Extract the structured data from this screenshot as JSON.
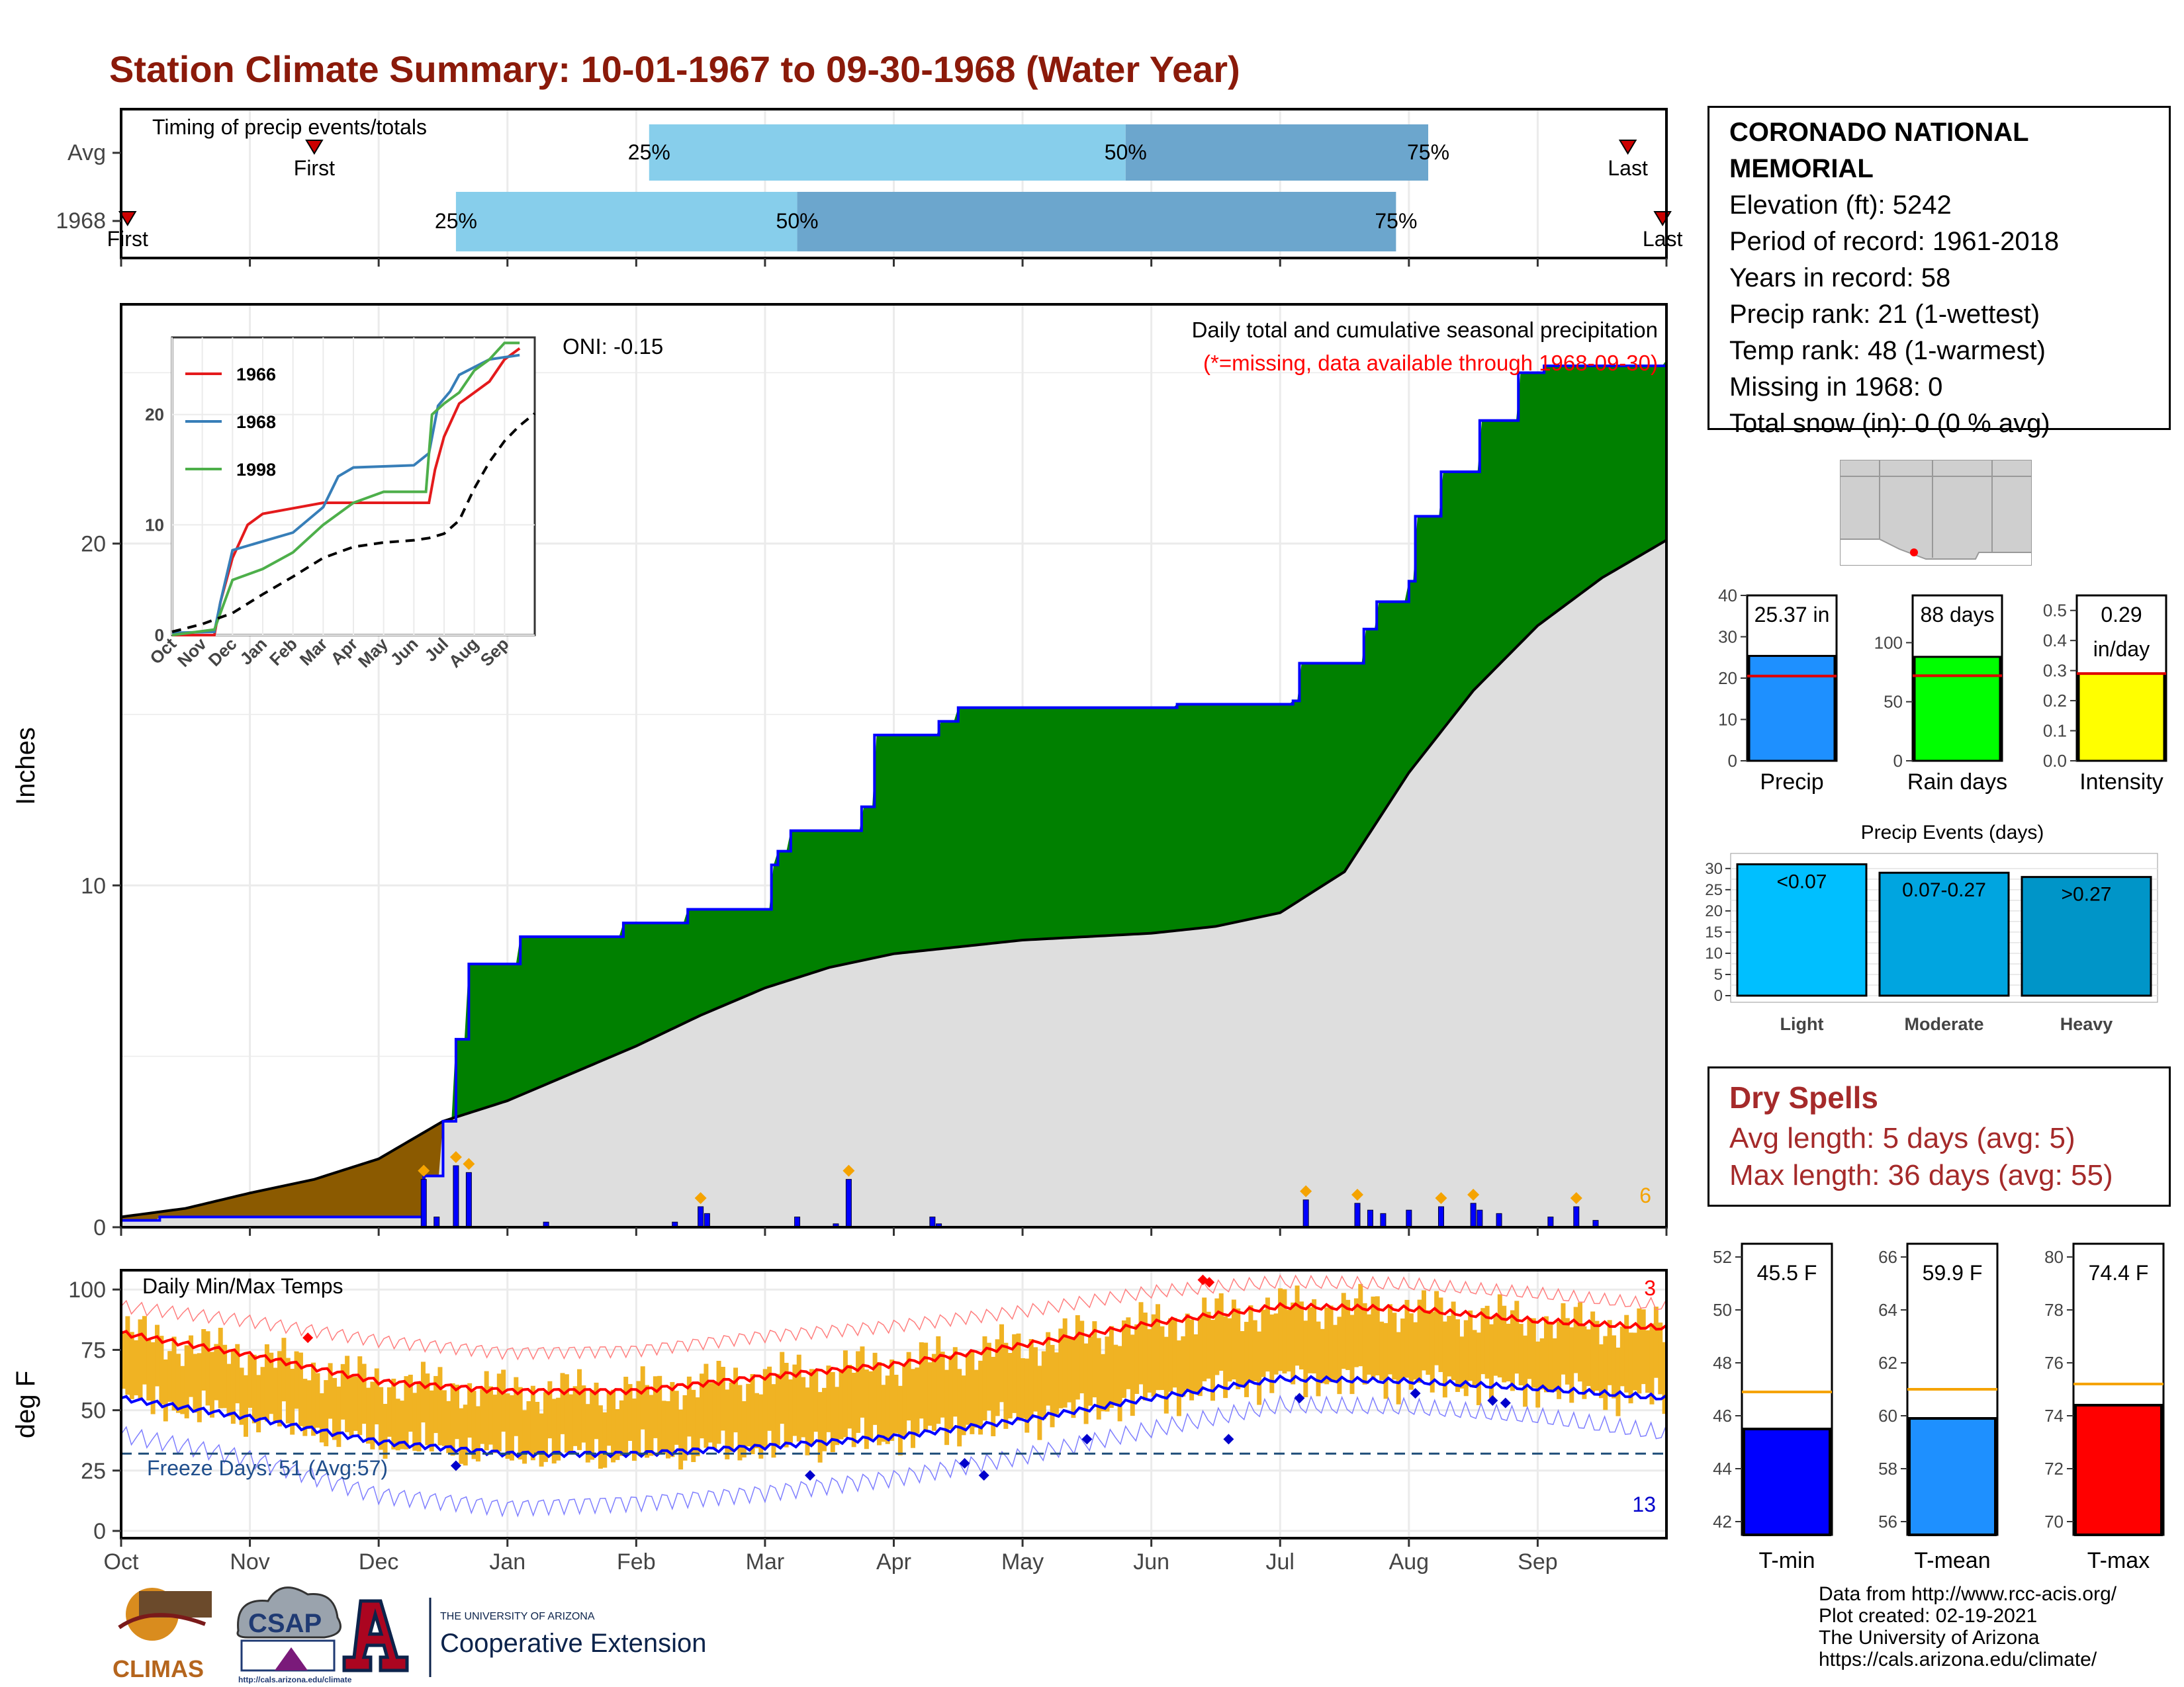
{
  "title": "Station Climate Summary: 10-01-1967 to 09-30-1968 (Water Year)",
  "timing_panel": {
    "label": "Timing of precip events/totals",
    "rows": [
      {
        "name": "Avg",
        "first_label": "First",
        "last_label": "Last",
        "p25": "25%",
        "p50": "50%",
        "p75": "75%",
        "first_month": 1.5,
        "p25_month": 4.1,
        "p50_month": 7.8,
        "p75_month": 10.15,
        "last_month": 11.7
      },
      {
        "name": "1968",
        "first_label": "First",
        "last_label": "Last",
        "p25": "25%",
        "p50": "50%",
        "p75": "75%",
        "first_month": 0.05,
        "p25_month": 2.6,
        "p50_month": 5.25,
        "p75_month": 9.9,
        "last_month": 11.97
      }
    ]
  },
  "precip_panel": {
    "title": "Daily total and cumulative seasonal precipitation",
    "subtitle": "(*=missing, data available through 1968-09-30)",
    "oni": "ONI: -0.15",
    "ylabel": "Inches",
    "yticks": [
      "0",
      "10",
      "20"
    ],
    "corner_count": "6"
  },
  "inset": {
    "legend": [
      "1966",
      "1968",
      "1998"
    ],
    "months": [
      "Oct",
      "Nov",
      "Dec",
      "Jan",
      "Feb",
      "Mar",
      "Apr",
      "May",
      "Jun",
      "Jul",
      "Aug",
      "Sep"
    ],
    "yticks": [
      "0",
      "10",
      "20"
    ]
  },
  "temp_panel": {
    "label": "Daily Min/Max Temps",
    "ylabel": "deg F",
    "yticks": [
      "0",
      "25",
      "50",
      "75",
      "100"
    ],
    "freeze": "Freeze Days: 51 (Avg:57)",
    "hot_count": "3",
    "cold_count": "13"
  },
  "months": [
    "Oct",
    "Nov",
    "Dec",
    "Jan",
    "Feb",
    "Mar",
    "Apr",
    "May",
    "Jun",
    "Jul",
    "Aug",
    "Sep"
  ],
  "station": {
    "name": "CORONADO NATIONAL MEMORIAL",
    "elevation": "Elevation (ft): 5242",
    "period": "Period of record: 1961-2018",
    "years": "Years in record: 58",
    "precip_rank": "Precip rank: 21 (1-wettest)",
    "temp_rank": "Temp rank: 48 (1-warmest)",
    "missing": "Missing in 1968: 0",
    "snow": "Total snow (in): 0 (0 % avg)"
  },
  "summary_bars": [
    {
      "label": "Precip",
      "value_label": "25.37 in",
      "value": 25.37,
      "avg": 20.5,
      "ymax": 40,
      "yticks": [
        "0",
        "10",
        "20",
        "30",
        "40"
      ],
      "color": "#1e90ff"
    },
    {
      "label": "Rain days",
      "value_label": "88 days",
      "value": 88,
      "avg": 72,
      "ymax": 140,
      "yticks": [
        "0",
        "50",
        "100"
      ],
      "color": "#00ff00"
    },
    {
      "label": "Intensity",
      "value_label": "0.29",
      "value_label2": "in/day",
      "value": 0.29,
      "avg": 0.29,
      "ymax": 0.55,
      "yticks": [
        "0.0",
        "0.1",
        "0.2",
        "0.3",
        "0.4",
        "0.5"
      ],
      "color": "#ffff00"
    }
  ],
  "precip_events": {
    "title": "Precip Events (days)",
    "categories": [
      "Light",
      "Moderate",
      "Heavy"
    ],
    "bar_labels": [
      "<0.07",
      "0.07-0.27",
      ">0.27"
    ],
    "values": [
      31,
      29,
      28
    ],
    "yticks": [
      "0",
      "5",
      "10",
      "15",
      "20",
      "25",
      "30"
    ],
    "colors": [
      "#00bfff",
      "#00a5e0",
      "#0095c8"
    ]
  },
  "dry_spells": {
    "title": "Dry Spells",
    "avg": "Avg length: 5 days (avg: 5)",
    "max": "Max length: 36 days (avg: 55)"
  },
  "temp_bars": [
    {
      "label": "T-min",
      "value_label": "45.5 F",
      "value": 45.5,
      "avg": 46.9,
      "ymin": 41.5,
      "ymax": 52.5,
      "yticks": [
        "42",
        "44",
        "46",
        "48",
        "50",
        "52"
      ],
      "color": "#0000ff"
    },
    {
      "label": "T-mean",
      "value_label": "59.9 F",
      "value": 59.9,
      "avg": 61.0,
      "ymin": 55.5,
      "ymax": 66.5,
      "yticks": [
        "56",
        "58",
        "60",
        "62",
        "64",
        "66"
      ],
      "color": "#1e90ff"
    },
    {
      "label": "T-max",
      "value_label": "74.4 F",
      "value": 74.4,
      "avg": 75.2,
      "ymin": 69.5,
      "ymax": 80.5,
      "yticks": [
        "70",
        "72",
        "74",
        "76",
        "78",
        "80"
      ],
      "color": "#ff0000"
    }
  ],
  "credits": {
    "line1": "Data from http://www.rcc-acis.org/",
    "line2": "Plot created: 02-19-2021",
    "line3": "The University of Arizona",
    "line4": "https://cals.arizona.edu/climate/"
  },
  "logos": {
    "climas": "CLIMAS",
    "csap": "CSAP",
    "csap_url": "http://cals.arizona.edu/climate",
    "ua_small": "THE UNIVERSITY OF ARIZONA",
    "ua_big": "Cooperative Extension"
  },
  "chart_data": [
    {
      "type": "area",
      "title": "Daily total and cumulative seasonal precipitation",
      "ylabel": "Inches",
      "ylim": [
        0,
        27
      ],
      "x_unit": "month index from Oct 1 (0-12)",
      "cumulative_1968": [
        [
          0,
          0.2
        ],
        [
          0.3,
          0.3
        ],
        [
          2.0,
          0.3
        ],
        [
          2.35,
          1.5
        ],
        [
          2.5,
          3.1
        ],
        [
          2.6,
          5.5
        ],
        [
          2.7,
          7.7
        ],
        [
          3.0,
          7.7
        ],
        [
          3.1,
          8.5
        ],
        [
          3.8,
          8.5
        ],
        [
          3.9,
          8.9
        ],
        [
          4.35,
          8.9
        ],
        [
          4.4,
          9.3
        ],
        [
          5.0,
          9.3
        ],
        [
          5.05,
          10.6
        ],
        [
          5.1,
          11.0
        ],
        [
          5.2,
          11.6
        ],
        [
          5.65,
          11.6
        ],
        [
          5.75,
          12.3
        ],
        [
          5.85,
          14.4
        ],
        [
          6.25,
          14.4
        ],
        [
          6.35,
          14.8
        ],
        [
          6.5,
          15.2
        ],
        [
          8.2,
          15.3
        ],
        [
          9.1,
          15.4
        ],
        [
          9.15,
          16.5
        ],
        [
          9.6,
          16.5
        ],
        [
          9.65,
          17.5
        ],
        [
          9.75,
          18.3
        ],
        [
          10.0,
          18.9
        ],
        [
          10.05,
          20.8
        ],
        [
          10.25,
          22.1
        ],
        [
          10.5,
          22.1
        ],
        [
          10.55,
          23.6
        ],
        [
          10.8,
          23.6
        ],
        [
          10.85,
          25.0
        ],
        [
          11.05,
          25.2
        ],
        [
          12.0,
          25.37
        ]
      ],
      "cumulative_avg": [
        [
          0,
          0.3
        ],
        [
          0.5,
          0.55
        ],
        [
          1.0,
          1.0
        ],
        [
          1.5,
          1.4
        ],
        [
          2.0,
          2.0
        ],
        [
          2.5,
          3.1
        ],
        [
          3.0,
          3.7
        ],
        [
          3.5,
          4.5
        ],
        [
          4.0,
          5.3
        ],
        [
          4.5,
          6.2
        ],
        [
          5.0,
          7.0
        ],
        [
          5.5,
          7.6
        ],
        [
          6.0,
          8.0
        ],
        [
          6.5,
          8.2
        ],
        [
          7.0,
          8.4
        ],
        [
          7.5,
          8.5
        ],
        [
          8.0,
          8.6
        ],
        [
          8.5,
          8.8
        ],
        [
          9.0,
          9.2
        ],
        [
          9.5,
          10.4
        ],
        [
          10.0,
          13.3
        ],
        [
          10.5,
          15.7
        ],
        [
          11.0,
          17.6
        ],
        [
          11.5,
          19.0
        ],
        [
          12.0,
          20.1
        ]
      ],
      "daily_spikes": [
        [
          2.35,
          1.4
        ],
        [
          2.45,
          0.3
        ],
        [
          2.6,
          1.8
        ],
        [
          2.7,
          1.6
        ],
        [
          3.3,
          0.15
        ],
        [
          4.3,
          0.15
        ],
        [
          4.5,
          0.6
        ],
        [
          4.55,
          0.4
        ],
        [
          5.25,
          0.3
        ],
        [
          5.55,
          0.1
        ],
        [
          5.65,
          1.4
        ],
        [
          6.3,
          0.3
        ],
        [
          6.35,
          0.1
        ],
        [
          9.2,
          0.8
        ],
        [
          9.6,
          0.7
        ],
        [
          9.7,
          0.5
        ],
        [
          9.8,
          0.4
        ],
        [
          10.0,
          0.5
        ],
        [
          10.25,
          0.6
        ],
        [
          10.5,
          0.7
        ],
        [
          10.55,
          0.5
        ],
        [
          10.7,
          0.4
        ],
        [
          11.1,
          0.3
        ],
        [
          11.3,
          0.6
        ],
        [
          11.45,
          0.2
        ]
      ]
    },
    {
      "type": "line",
      "title": "",
      "x_unit": "month index",
      "ylim": [
        0,
        27
      ],
      "series": [
        {
          "name": "1966",
          "color": "#e41a1c",
          "values": [
            [
              0,
              0
            ],
            [
              1.4,
              0
            ],
            [
              1.6,
              3
            ],
            [
              2.0,
              7
            ],
            [
              2.5,
              10
            ],
            [
              3,
              11
            ],
            [
              4,
              11.5
            ],
            [
              5,
              12
            ],
            [
              6,
              12
            ],
            [
              7,
              12
            ],
            [
              8,
              12
            ],
            [
              8.5,
              12
            ],
            [
              8.7,
              15
            ],
            [
              9,
              18
            ],
            [
              9.5,
              21
            ],
            [
              10,
              22
            ],
            [
              10.5,
              23
            ],
            [
              11,
              25
            ],
            [
              11.5,
              26
            ]
          ]
        },
        {
          "name": "1968",
          "color": "#377eb8",
          "values": [
            [
              0,
              0.2
            ],
            [
              1.4,
              0.3
            ],
            [
              1.6,
              3
            ],
            [
              2,
              7.7
            ],
            [
              3,
              8.5
            ],
            [
              4,
              9.3
            ],
            [
              5,
              11.6
            ],
            [
              5.5,
              14.4
            ],
            [
              6,
              15.2
            ],
            [
              8,
              15.4
            ],
            [
              8.5,
              16.5
            ],
            [
              8.8,
              20.8
            ],
            [
              9.2,
              22.1
            ],
            [
              9.5,
              23.6
            ],
            [
              10.5,
              25
            ],
            [
              11.5,
              25.4
            ]
          ]
        },
        {
          "name": "1998",
          "color": "#4daf4a",
          "values": [
            [
              0,
              0
            ],
            [
              1.4,
              0.5
            ],
            [
              1.6,
              2
            ],
            [
              2,
              5
            ],
            [
              3,
              6
            ],
            [
              4,
              7.5
            ],
            [
              5,
              10
            ],
            [
              6,
              12
            ],
            [
              7,
              13
            ],
            [
              8,
              13
            ],
            [
              8.4,
              13
            ],
            [
              8.6,
              20
            ],
            [
              9,
              21
            ],
            [
              9.5,
              22
            ],
            [
              10,
              24
            ],
            [
              10.5,
              25
            ],
            [
              11,
              26.5
            ],
            [
              11.5,
              26.5
            ]
          ]
        },
        {
          "name": "",
          "color": "#000000",
          "dashed": true,
          "values": [
            [
              0,
              0.3
            ],
            [
              1,
              1.0
            ],
            [
              2,
              2.0
            ],
            [
              3,
              3.7
            ],
            [
              4,
              5.3
            ],
            [
              5,
              7.0
            ],
            [
              6,
              8.0
            ],
            [
              7,
              8.4
            ],
            [
              8,
              8.6
            ],
            [
              8.5,
              8.8
            ],
            [
              9,
              9.2
            ],
            [
              9.5,
              10.4
            ],
            [
              10,
              13.3
            ],
            [
              10.5,
              15.7
            ],
            [
              11,
              17.6
            ],
            [
              11.5,
              19.0
            ],
            [
              12,
              20.1
            ]
          ]
        }
      ]
    },
    {
      "type": "line",
      "title": "Daily Min/Max Temps",
      "ylabel": "deg F",
      "ylim": [
        -3,
        108
      ],
      "x_unit": "month index",
      "series": [
        {
          "name": "",
          "color": "#ff0000",
          "values": [
            [
              0,
              82
            ],
            [
              1,
              73
            ],
            [
              2,
              62
            ],
            [
              3,
              58
            ],
            [
              4,
              58
            ],
            [
              5,
              64
            ],
            [
              6,
              69
            ],
            [
              7,
              77
            ],
            [
              8,
              86
            ],
            [
              9,
              93
            ],
            [
              10,
              92
            ],
            [
              11,
              87
            ],
            [
              12,
              84
            ]
          ]
        },
        {
          "name": "",
          "color": "#0000ff",
          "values": [
            [
              0,
              55
            ],
            [
              1,
              47
            ],
            [
              2,
              37
            ],
            [
              3,
              32
            ],
            [
              4,
              32
            ],
            [
              5,
              35
            ],
            [
              6,
              39
            ],
            [
              7,
              46
            ],
            [
              8,
              55
            ],
            [
              9,
              63
            ],
            [
              10,
              62
            ],
            [
              11,
              59
            ],
            [
              12,
              55
            ]
          ]
        },
        {
          "name": "",
          "color": "#ff7f7f",
          "values": [
            [
              0,
              93
            ],
            [
              1,
              87
            ],
            [
              2,
              79
            ],
            [
              3,
              74
            ],
            [
              4,
              75
            ],
            [
              5,
              81
            ],
            [
              6,
              85
            ],
            [
              7,
              91
            ],
            [
              8,
              99
            ],
            [
              9,
              103
            ],
            [
              10,
              102
            ],
            [
              11,
              98
            ],
            [
              12,
              93
            ]
          ]
        },
        {
          "name": "",
          "color": "#7f7fff",
          "values": [
            [
              0,
              40
            ],
            [
              1,
              30
            ],
            [
              2,
              15
            ],
            [
              3,
              10
            ],
            [
              4,
              12
            ],
            [
              5,
              16
            ],
            [
              6,
              22
            ],
            [
              7,
              31
            ],
            [
              8,
              42
            ],
            [
              9,
              52
            ],
            [
              10,
              51
            ],
            [
              11,
              47
            ],
            [
              12,
              40
            ]
          ]
        }
      ],
      "freeze_threshold": 32
    }
  ]
}
